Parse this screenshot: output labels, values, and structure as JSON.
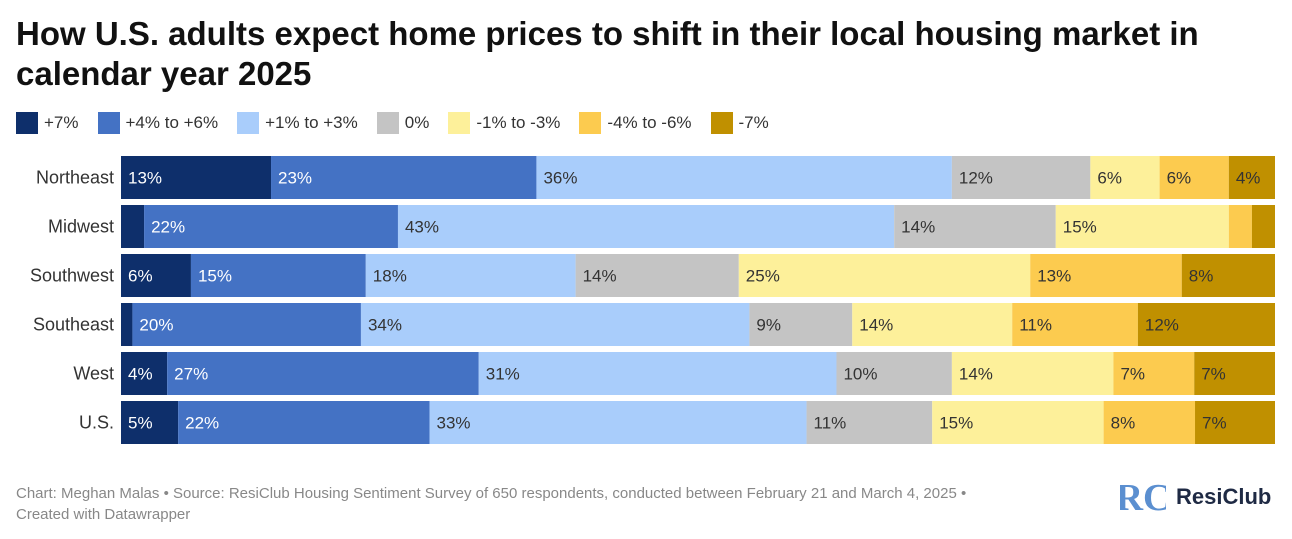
{
  "header": {
    "title": "How U.S. adults expect home prices to shift in their local housing market in calendar year 2025"
  },
  "chart_data": {
    "type": "stacked-bar-horizontal",
    "title": "How U.S. adults expect home prices to shift in their local housing market in calendar year 2025",
    "unit": "%",
    "legend_position": "top-left",
    "series": [
      {
        "name": "+7%",
        "color": "#0e2f6b"
      },
      {
        "name": "+4% to +6%",
        "color": "#4472c4"
      },
      {
        "name": "+1% to +3%",
        "color": "#a9cdfb"
      },
      {
        "name": "0%",
        "color": "#c4c4c4"
      },
      {
        "name": "-1% to -3%",
        "color": "#fdf09a"
      },
      {
        "name": "-4% to -6%",
        "color": "#fccb4f"
      },
      {
        "name": "-7%",
        "color": "#c09000"
      }
    ],
    "categories": [
      "Northeast",
      "Midwest",
      "Southwest",
      "Southeast",
      "West",
      "U.S."
    ],
    "values": [
      [
        13,
        23,
        36,
        12,
        6,
        6,
        4
      ],
      [
        2,
        22,
        43,
        14,
        15,
        2,
        2
      ],
      [
        6,
        15,
        18,
        14,
        25,
        13,
        8
      ],
      [
        1,
        20,
        34,
        9,
        14,
        11,
        12
      ],
      [
        4,
        27,
        31,
        10,
        14,
        7,
        7
      ],
      [
        5,
        22,
        33,
        11,
        15,
        8,
        7
      ]
    ],
    "labels": [
      [
        "13%",
        "23%",
        "36%",
        "12%",
        "6%",
        "6%",
        "4%"
      ],
      [
        "",
        "22%",
        "43%",
        "14%",
        "15%",
        "",
        ""
      ],
      [
        "6%",
        "15%",
        "18%",
        "14%",
        "25%",
        "13%",
        "8%"
      ],
      [
        "",
        "20%",
        "34%",
        "9%",
        "14%",
        "11%",
        "12%"
      ],
      [
        "4%",
        "27%",
        "31%",
        "10%",
        "14%",
        "7%",
        "7%"
      ],
      [
        "5%",
        "22%",
        "33%",
        "11%",
        "15%",
        "8%",
        "7%"
      ]
    ]
  },
  "footer": {
    "line1": "Chart: Meghan Malas • Source: ResiClub Housing Sentiment Survey of 650 respondents, conducted between February 21 and March 4, 2025 •",
    "line2": "Created with Datawrapper"
  },
  "logo": {
    "text": "ResiClub",
    "mark": "RC",
    "color": "#5b8fd0"
  }
}
